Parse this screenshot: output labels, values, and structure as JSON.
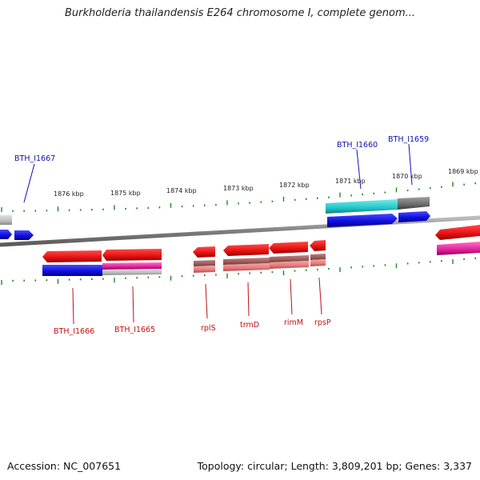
{
  "header": {
    "title": "Burkholderia thailandensis E264 chromosome I, complete genom..."
  },
  "footer": {
    "accession": "Accession: NC_007651",
    "summary": "Topology: circular; Length: 3,809,201 bp; Genes: 3,337"
  },
  "scale": {
    "ticks": [
      "1876 kbp",
      "1875 kbp",
      "1874 kbp",
      "1873 kbp",
      "1872 kbp",
      "1871 kbp",
      "1870 kbp",
      "1869 kbp"
    ]
  },
  "genes": {
    "forward": [
      "BTH_I1667",
      "BTH_I1660",
      "BTH_I1659"
    ],
    "reverse": [
      "BTH_I1666",
      "BTH_I1665",
      "rplS",
      "trmD",
      "rimM",
      "rpsP"
    ]
  },
  "colors": {
    "forward_label": "#1010b0",
    "reverse_label": "#c01010",
    "backbone": "#8a8a8a",
    "tick": "#1e8a1e",
    "gene_red": "#e81414",
    "gene_blue": "#1010e0",
    "gene_cyan": "#20c8c8",
    "gene_magenta": "#e0209a",
    "gene_gray": "#707070",
    "gene_salmon": "#e87878"
  }
}
